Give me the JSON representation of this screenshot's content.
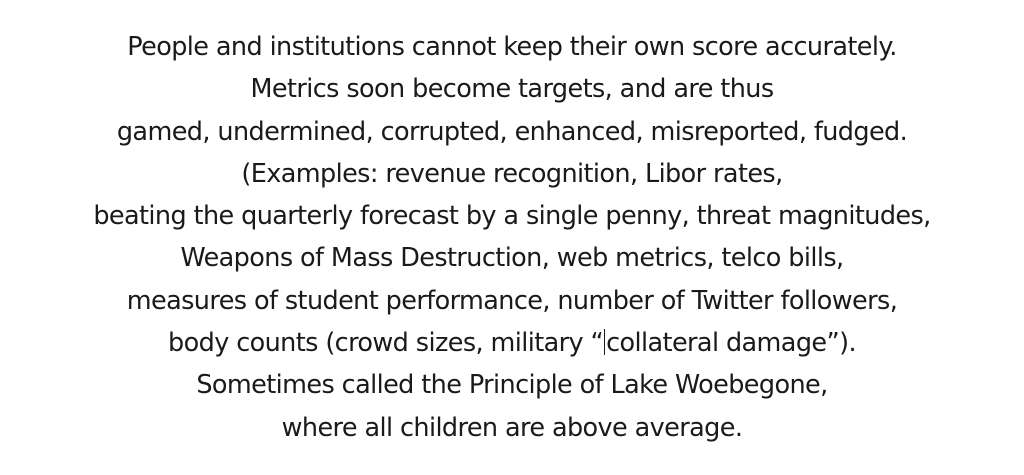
{
  "document": {
    "lines": [
      "People and institutions cannot keep their own score accurately.",
      "Metrics soon become targets, and are thus",
      "gamed, undermined, corrupted, enhanced, misreported, fudged.",
      "(Examples: revenue recognition, Libor rates,",
      "beating the quarterly forecast by a single penny, threat magnitudes,",
      "Weapons of Mass Destruction, web metrics, telco bills,",
      "measures of student performance, number of Twitter followers,",
      "body counts (crowd sizes, military “",
      "collateral damage”).",
      "Sometimes called the Principle of Lake Woebegone,",
      "where all children are above average."
    ]
  }
}
